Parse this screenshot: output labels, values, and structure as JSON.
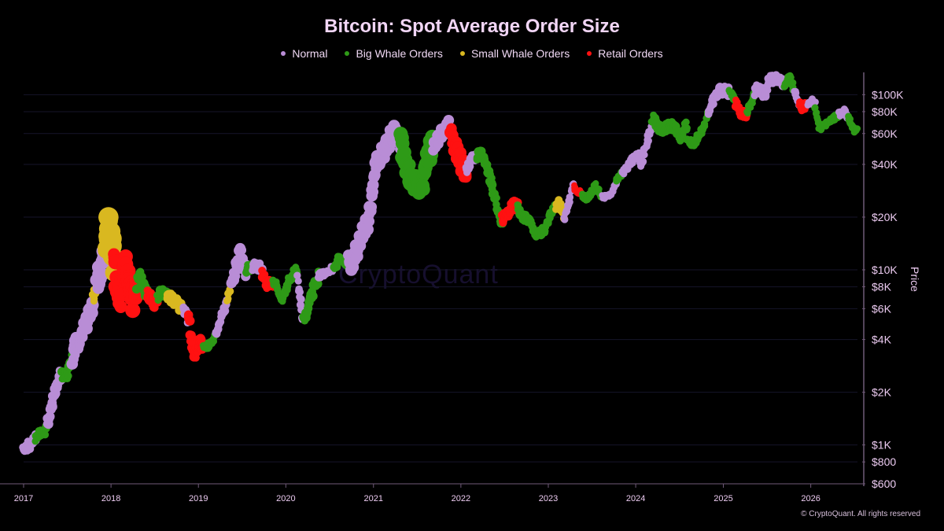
{
  "colors": {
    "normal": "#b98dd6",
    "big_whale": "#2e9a17",
    "small_whale": "#d9b820",
    "retail": "#ff1111",
    "axis_text": "#eccbf1",
    "grid": "#16142a",
    "axis_line": "#6f5a78"
  },
  "watermark": "CryptoQuant",
  "footer": "© CryptoQuant. All rights reserved",
  "chart_data": {
    "type": "scatter",
    "title": "Bitcoin: Spot Average Order Size",
    "xlabel": "",
    "ylabel": "Price",
    "y_scale": "log",
    "grid": true,
    "legend_position": "top-center",
    "x_range": [
      "2017-01-01",
      "2026-07-15"
    ],
    "ylim": [
      600,
      130000
    ],
    "x_ticks": [
      "2017",
      "2018",
      "2019",
      "2020",
      "2021",
      "2022",
      "2023",
      "2024",
      "2025",
      "2026"
    ],
    "y_ticks": [
      {
        "value": 100000,
        "label": "$100K"
      },
      {
        "value": 80000,
        "label": "$80K"
      },
      {
        "value": 60000,
        "label": "$60K"
      },
      {
        "value": 40000,
        "label": "$40K"
      },
      {
        "value": 20000,
        "label": "$20K"
      },
      {
        "value": 10000,
        "label": "$10K"
      },
      {
        "value": 8000,
        "label": "$8K"
      },
      {
        "value": 6000,
        "label": "$6K"
      },
      {
        "value": 4000,
        "label": "$4K"
      },
      {
        "value": 2000,
        "label": "$2K"
      },
      {
        "value": 1000,
        "label": "$1K"
      },
      {
        "value": 800,
        "label": "$800"
      },
      {
        "value": 600,
        "label": "$600"
      }
    ],
    "legend": [
      {
        "name": "Normal",
        "key": "normal"
      },
      {
        "name": "Big Whale Orders",
        "key": "big_whale"
      },
      {
        "name": "Small Whale Orders",
        "key": "small_whale"
      },
      {
        "name": "Retail Orders",
        "key": "retail"
      }
    ],
    "price_path": [
      [
        "2017-01-01",
        970
      ],
      [
        "2017-02-01",
        1000
      ],
      [
        "2017-03-01",
        1150
      ],
      [
        "2017-04-01",
        1200
      ],
      [
        "2017-05-01",
        1700
      ],
      [
        "2017-06-01",
        2500
      ],
      [
        "2017-07-01",
        2500
      ],
      [
        "2017-08-01",
        3500
      ],
      [
        "2017-09-01",
        4300
      ],
      [
        "2017-10-01",
        5500
      ],
      [
        "2017-11-01",
        8000
      ],
      [
        "2017-12-01",
        11000
      ],
      [
        "2017-12-17",
        19000
      ],
      [
        "2018-01-01",
        14000
      ],
      [
        "2018-02-06",
        7000
      ],
      [
        "2018-03-01",
        10500
      ],
      [
        "2018-04-06",
        6800
      ],
      [
        "2018-05-01",
        9200
      ],
      [
        "2018-06-01",
        7300
      ],
      [
        "2018-07-01",
        6400
      ],
      [
        "2018-08-01",
        7500
      ],
      [
        "2018-09-01",
        7000
      ],
      [
        "2018-10-01",
        6600
      ],
      [
        "2018-11-15",
        5600
      ],
      [
        "2018-12-15",
        3300
      ],
      [
        "2019-01-01",
        3800
      ],
      [
        "2019-02-01",
        3600
      ],
      [
        "2019-03-01",
        3900
      ],
      [
        "2019-04-02",
        5000
      ],
      [
        "2019-05-15",
        8000
      ],
      [
        "2019-06-26",
        12500
      ],
      [
        "2019-07-15",
        10000
      ],
      [
        "2019-08-15",
        10500
      ],
      [
        "2019-09-15",
        10300
      ],
      [
        "2019-10-15",
        8200
      ],
      [
        "2019-11-15",
        8600
      ],
      [
        "2019-12-17",
        6700
      ],
      [
        "2020-01-15",
        8800
      ],
      [
        "2020-02-15",
        10300
      ],
      [
        "2020-03-12",
        5000
      ],
      [
        "2020-04-15",
        6900
      ],
      [
        "2020-05-15",
        9300
      ],
      [
        "2020-06-15",
        9500
      ],
      [
        "2020-07-27",
        10500
      ],
      [
        "2020-08-15",
        11800
      ],
      [
        "2020-09-15",
        10800
      ],
      [
        "2020-10-15",
        11500
      ],
      [
        "2020-11-15",
        16000
      ],
      [
        "2020-12-15",
        19500
      ],
      [
        "2021-01-08",
        40000
      ],
      [
        "2021-02-15",
        48000
      ],
      [
        "2021-03-15",
        58000
      ],
      [
        "2021-04-14",
        63000
      ],
      [
        "2021-05-19",
        38000
      ],
      [
        "2021-06-22",
        31000
      ],
      [
        "2021-07-20",
        30000
      ],
      [
        "2021-08-15",
        46000
      ],
      [
        "2021-09-07",
        52000
      ],
      [
        "2021-10-15",
        60000
      ],
      [
        "2021-11-10",
        67000
      ],
      [
        "2021-12-15",
        48000
      ],
      [
        "2022-01-22",
        36000
      ],
      [
        "2022-02-15",
        43000
      ],
      [
        "2022-03-28",
        47000
      ],
      [
        "2022-05-10",
        31000
      ],
      [
        "2022-06-18",
        19000
      ],
      [
        "2022-07-15",
        21000
      ],
      [
        "2022-08-14",
        24000
      ],
      [
        "2022-09-15",
        20000
      ],
      [
        "2022-10-15",
        19200
      ],
      [
        "2022-11-10",
        16000
      ],
      [
        "2022-12-15",
        16800
      ],
      [
        "2023-01-20",
        22500
      ],
      [
        "2023-02-15",
        24000
      ],
      [
        "2023-03-10",
        20000
      ],
      [
        "2023-04-14",
        30000
      ],
      [
        "2023-05-15",
        27000
      ],
      [
        "2023-06-15",
        25500
      ],
      [
        "2023-07-15",
        30500
      ],
      [
        "2023-08-17",
        26000
      ],
      [
        "2023-09-15",
        26500
      ],
      [
        "2023-10-24",
        34000
      ],
      [
        "2023-11-15",
        37000
      ],
      [
        "2023-12-15",
        42000
      ],
      [
        "2024-01-10",
        46500
      ],
      [
        "2024-01-23",
        39500
      ],
      [
        "2024-02-15",
        52000
      ],
      [
        "2024-03-14",
        73000
      ],
      [
        "2024-04-15",
        63000
      ],
      [
        "2024-05-15",
        66000
      ],
      [
        "2024-06-15",
        66000
      ],
      [
        "2024-07-05",
        56000
      ],
      [
        "2024-07-29",
        69000
      ],
      [
        "2024-08-05",
        53000
      ],
      [
        "2024-09-06",
        54000
      ],
      [
        "2024-10-15",
        67000
      ],
      [
        "2024-11-13",
        90000
      ],
      [
        "2024-12-17",
        106000
      ],
      [
        "2025-01-20",
        105000
      ],
      [
        "2025-02-15",
        96000
      ],
      [
        "2025-03-10",
        80000
      ],
      [
        "2025-04-08",
        77000
      ],
      [
        "2025-05-22",
        110000
      ],
      [
        "2025-06-22",
        100000
      ],
      [
        "2025-07-14",
        122000
      ],
      [
        "2025-08-14",
        123000
      ],
      [
        "2025-09-15",
        115000
      ],
      [
        "2025-10-06",
        125000
      ],
      [
        "2025-11-21",
        84000
      ],
      [
        "2025-12-15",
        87000
      ],
      [
        "2026-01-15",
        92000
      ],
      [
        "2026-02-06",
        63000
      ],
      [
        "2026-03-15",
        70000
      ],
      [
        "2026-04-15",
        75000
      ],
      [
        "2026-05-20",
        80000
      ],
      [
        "2026-06-20",
        68000
      ],
      [
        "2026-07-05",
        62000
      ]
    ],
    "segments": [
      {
        "from": "2017-01-01",
        "to": "2017-02-20",
        "class": "normal",
        "spread": 1.06
      },
      {
        "from": "2017-02-20",
        "to": "2017-04-10",
        "class": "big_whale",
        "spread": 1.05
      },
      {
        "from": "2017-04-10",
        "to": "2017-06-10",
        "class": "normal",
        "spread": 1.08
      },
      {
        "from": "2017-06-10",
        "to": "2017-07-25",
        "class": "big_whale",
        "spread": 1.06
      },
      {
        "from": "2017-07-25",
        "to": "2017-10-20",
        "class": "normal",
        "spread": 1.12
      },
      {
        "from": "2017-10-20",
        "to": "2017-11-05",
        "class": "small_whale",
        "spread": 1.06
      },
      {
        "from": "2017-11-05",
        "to": "2017-12-10",
        "class": "normal",
        "spread": 1.15
      },
      {
        "from": "2017-12-10",
        "to": "2018-01-15",
        "class": "small_whale",
        "spread": 1.25
      },
      {
        "from": "2018-01-15",
        "to": "2018-04-20",
        "class": "retail",
        "spread": 1.18
      },
      {
        "from": "2018-04-20",
        "to": "2018-06-01",
        "class": "big_whale",
        "spread": 1.08
      },
      {
        "from": "2018-06-01",
        "to": "2018-07-15",
        "class": "retail",
        "spread": 1.07
      },
      {
        "from": "2018-07-15",
        "to": "2018-08-25",
        "class": "big_whale",
        "spread": 1.06
      },
      {
        "from": "2018-08-25",
        "to": "2018-10-30",
        "class": "small_whale",
        "spread": 1.07
      },
      {
        "from": "2018-10-30",
        "to": "2018-11-20",
        "class": "normal",
        "spread": 1.05
      },
      {
        "from": "2018-11-20",
        "to": "2019-01-20",
        "class": "retail",
        "spread": 1.08
      },
      {
        "from": "2019-01-20",
        "to": "2019-03-15",
        "class": "big_whale",
        "spread": 1.04
      },
      {
        "from": "2019-03-15",
        "to": "2019-05-01",
        "class": "normal",
        "spread": 1.06
      },
      {
        "from": "2019-05-01",
        "to": "2019-05-20",
        "class": "small_whale",
        "spread": 1.05
      },
      {
        "from": "2019-05-20",
        "to": "2019-07-20",
        "class": "normal",
        "spread": 1.1
      },
      {
        "from": "2019-07-20",
        "to": "2019-08-15",
        "class": "big_whale",
        "spread": 1.06
      },
      {
        "from": "2019-08-15",
        "to": "2019-09-25",
        "class": "normal",
        "spread": 1.06
      },
      {
        "from": "2019-09-25",
        "to": "2019-11-10",
        "class": "retail",
        "spread": 1.07
      },
      {
        "from": "2019-11-10",
        "to": "2020-02-20",
        "class": "big_whale",
        "spread": 1.05
      },
      {
        "from": "2020-02-20",
        "to": "2020-03-15",
        "class": "normal",
        "spread": 1.06
      },
      {
        "from": "2020-03-15",
        "to": "2020-05-15",
        "class": "big_whale",
        "spread": 1.07
      },
      {
        "from": "2020-05-15",
        "to": "2020-07-20",
        "class": "normal",
        "spread": 1.04
      },
      {
        "from": "2020-07-20",
        "to": "2020-09-20",
        "class": "big_whale",
        "spread": 1.05
      },
      {
        "from": "2020-09-20",
        "to": "2021-04-25",
        "class": "normal",
        "spread": 1.12
      },
      {
        "from": "2021-04-25",
        "to": "2021-09-10",
        "class": "big_whale",
        "spread": 1.16
      },
      {
        "from": "2021-09-10",
        "to": "2021-11-20",
        "class": "normal",
        "spread": 1.1
      },
      {
        "from": "2021-11-20",
        "to": "2022-01-25",
        "class": "retail",
        "spread": 1.13
      },
      {
        "from": "2022-01-25",
        "to": "2022-03-10",
        "class": "normal",
        "spread": 1.06
      },
      {
        "from": "2022-03-10",
        "to": "2022-05-25",
        "class": "big_whale",
        "spread": 1.07
      },
      {
        "from": "2022-05-25",
        "to": "2022-06-25",
        "class": "big_whale",
        "spread": 1.06
      },
      {
        "from": "2022-06-25",
        "to": "2022-08-25",
        "class": "retail",
        "spread": 1.07
      },
      {
        "from": "2022-08-25",
        "to": "2023-02-01",
        "class": "big_whale",
        "spread": 1.05
      },
      {
        "from": "2023-02-01",
        "to": "2023-03-10",
        "class": "small_whale",
        "spread": 1.05
      },
      {
        "from": "2023-03-10",
        "to": "2023-04-20",
        "class": "normal",
        "spread": 1.04
      },
      {
        "from": "2023-04-20",
        "to": "2023-05-25",
        "class": "retail",
        "spread": 1.04
      },
      {
        "from": "2023-05-25",
        "to": "2023-08-15",
        "class": "big_whale",
        "spread": 1.04
      },
      {
        "from": "2023-08-15",
        "to": "2023-10-15",
        "class": "normal",
        "spread": 1.03
      },
      {
        "from": "2023-10-15",
        "to": "2023-11-10",
        "class": "big_whale",
        "spread": 1.04
      },
      {
        "from": "2023-11-10",
        "to": "2024-03-10",
        "class": "normal",
        "spread": 1.05
      },
      {
        "from": "2024-03-10",
        "to": "2024-06-25",
        "class": "big_whale",
        "spread": 1.06
      },
      {
        "from": "2024-06-25",
        "to": "2024-09-15",
        "class": "big_whale",
        "spread": 1.05
      },
      {
        "from": "2024-09-15",
        "to": "2024-11-01",
        "class": "big_whale",
        "spread": 1.04
      },
      {
        "from": "2024-11-01",
        "to": "2025-01-25",
        "class": "normal",
        "spread": 1.06
      },
      {
        "from": "2025-01-25",
        "to": "2025-02-20",
        "class": "big_whale",
        "spread": 1.04
      },
      {
        "from": "2025-02-20",
        "to": "2025-04-10",
        "class": "retail",
        "spread": 1.06
      },
      {
        "from": "2025-04-10",
        "to": "2025-05-15",
        "class": "big_whale",
        "spread": 1.04
      },
      {
        "from": "2025-05-15",
        "to": "2025-09-15",
        "class": "normal",
        "spread": 1.06
      },
      {
        "from": "2025-09-15",
        "to": "2025-10-25",
        "class": "big_whale",
        "spread": 1.04
      },
      {
        "from": "2025-10-25",
        "to": "2025-11-15",
        "class": "normal",
        "spread": 1.04
      },
      {
        "from": "2025-11-15",
        "to": "2025-12-20",
        "class": "retail",
        "spread": 1.05
      },
      {
        "from": "2025-12-20",
        "to": "2026-01-20",
        "class": "normal",
        "spread": 1.04
      },
      {
        "from": "2026-01-20",
        "to": "2026-05-01",
        "class": "big_whale",
        "spread": 1.04
      },
      {
        "from": "2026-05-01",
        "to": "2026-06-05",
        "class": "normal",
        "spread": 1.04
      },
      {
        "from": "2026-06-05",
        "to": "2026-07-15",
        "class": "big_whale",
        "spread": 1.04
      }
    ]
  }
}
